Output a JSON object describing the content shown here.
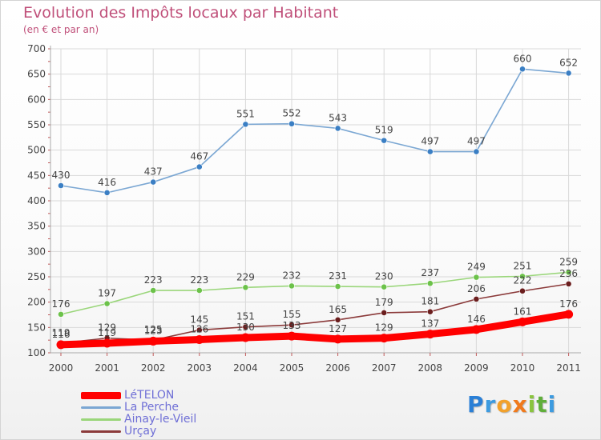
{
  "header": {
    "title": "Evolution des Impôts locaux par Habitant",
    "subtitle": "(en € et par an)"
  },
  "colors": {
    "title": "#c0507a",
    "axis_text": "#444444",
    "legend_text": "#6f6fd6",
    "grid": "#d9d9d9",
    "axis_line": "#aaaaaa",
    "tick_marks": "#c05a5a"
  },
  "brand": {
    "text": "Proxiti",
    "letters": [
      {
        "char": "P",
        "color": "#2a7fd6"
      },
      {
        "char": "r",
        "color": "#3d9be0"
      },
      {
        "char": "o",
        "color": "#f2a12b"
      },
      {
        "char": "x",
        "color": "#f07a1c"
      },
      {
        "char": "i",
        "color": "#8ac43f"
      },
      {
        "char": "t",
        "color": "#5fae3a"
      },
      {
        "char": "i",
        "color": "#3d9be0"
      }
    ]
  },
  "chart_data": {
    "type": "line",
    "x": [
      "2000",
      "2001",
      "2002",
      "2003",
      "2004",
      "2005",
      "2006",
      "2007",
      "2008",
      "2009",
      "2010",
      "2011"
    ],
    "ylim": [
      100,
      700
    ],
    "yticks": [
      100,
      150,
      200,
      250,
      300,
      350,
      400,
      450,
      500,
      550,
      600,
      650,
      700
    ],
    "grid": true,
    "legend_position": "bottom-left",
    "series": [
      {
        "name": "LéTELON",
        "color": "#ff0000",
        "marker_color": "#ff0000",
        "bold": true,
        "values": [
          116,
          119,
          123,
          126,
          130,
          133,
          127,
          129,
          137,
          146,
          161,
          176
        ],
        "labels": [
          "116",
          "119",
          "123",
          "126",
          "130",
          "133",
          "127",
          "129",
          "137",
          "146",
          "161",
          "176"
        ]
      },
      {
        "name": "La Perche",
        "color": "#7ba7d3",
        "marker_color": "#3b7fc4",
        "bold": false,
        "values": [
          430,
          416,
          437,
          467,
          551,
          552,
          543,
          519,
          497,
          497,
          660,
          652
        ],
        "labels": [
          "430",
          "416",
          "437",
          "467",
          "551",
          "552",
          "543",
          "519",
          "497",
          "497",
          "660",
          "652"
        ]
      },
      {
        "name": "Ainay-le-Vieil",
        "color": "#9ad67a",
        "marker_color": "#6cc24a",
        "bold": false,
        "values": [
          176,
          197,
          223,
          223,
          229,
          232,
          231,
          230,
          237,
          249,
          251,
          259
        ],
        "labels": [
          "176",
          "197",
          "223",
          "223",
          "229",
          "232",
          "231",
          "230",
          "237",
          "249",
          "251",
          "259"
        ]
      },
      {
        "name": "Urçay",
        "color": "#8b3a3a",
        "marker_color": "#6b1e1e",
        "bold": false,
        "values": [
          119,
          129,
          125,
          145,
          151,
          155,
          165,
          179,
          181,
          206,
          222,
          236
        ],
        "labels": [
          "119",
          "129",
          "125",
          "145",
          "151",
          "155",
          "165",
          "179",
          "181",
          "206",
          "222",
          "236"
        ]
      }
    ]
  }
}
